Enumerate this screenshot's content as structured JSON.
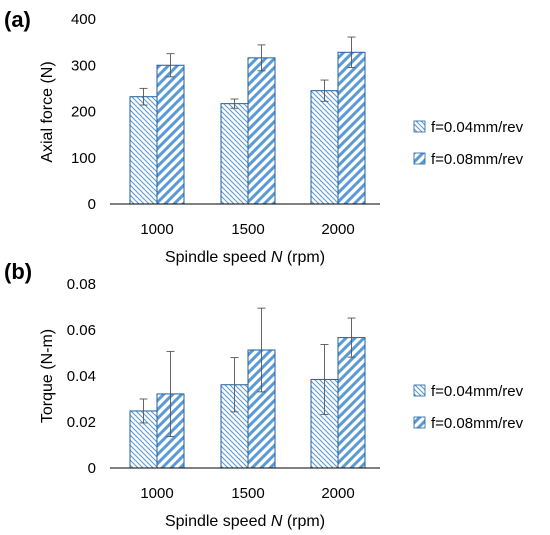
{
  "chart_data": [
    {
      "type": "bar",
      "panel_label": "(a)",
      "categories": [
        "1000",
        "1500",
        "2000"
      ],
      "ylabel": "Axial force (N)",
      "xlabel_parts": [
        "Spindle speed ",
        "N",
        " (rpm)"
      ],
      "ylim": [
        0,
        400
      ],
      "yticks": [
        "0",
        "100",
        "200",
        "300",
        "400"
      ],
      "ytick_values": [
        0,
        100,
        200,
        300,
        400
      ],
      "grid": false,
      "legend_position": "right",
      "series": [
        {
          "name": "f=0.04mm/rev",
          "values": [
            232,
            217,
            245
          ],
          "errors": [
            18,
            10,
            23
          ],
          "pattern": "light-diagonal-left"
        },
        {
          "name": "f=0.08mm/rev",
          "values": [
            300,
            316,
            328
          ],
          "errors": [
            25,
            28,
            33
          ],
          "pattern": "wide-diagonal-right"
        }
      ]
    },
    {
      "type": "bar",
      "panel_label": "(b)",
      "categories": [
        "1000",
        "1500",
        "2000"
      ],
      "ylabel": "Torque (N-m)",
      "xlabel_parts": [
        "Spindle speed ",
        "N",
        " (rpm)"
      ],
      "ylim": [
        0,
        0.08
      ],
      "yticks": [
        "0",
        "0.02",
        "0.04",
        "0.06",
        "0.08"
      ],
      "ytick_values": [
        0,
        0.02,
        0.04,
        0.06,
        0.08
      ],
      "grid": false,
      "legend_position": "right",
      "series": [
        {
          "name": "f=0.04mm/rev",
          "values": [
            0.0248,
            0.0362,
            0.0385
          ],
          "errors": [
            0.0052,
            0.0118,
            0.0152
          ],
          "pattern": "light-diagonal-left"
        },
        {
          "name": "f=0.08mm/rev",
          "values": [
            0.0322,
            0.0513,
            0.0567
          ],
          "errors": [
            0.0185,
            0.0182,
            0.0085
          ],
          "pattern": "wide-diagonal-right"
        }
      ]
    }
  ],
  "colors": {
    "stroke": "#1f5f9f",
    "hatch": "#5b9bd5",
    "axis": "#000000",
    "error_bar": "#555555"
  }
}
